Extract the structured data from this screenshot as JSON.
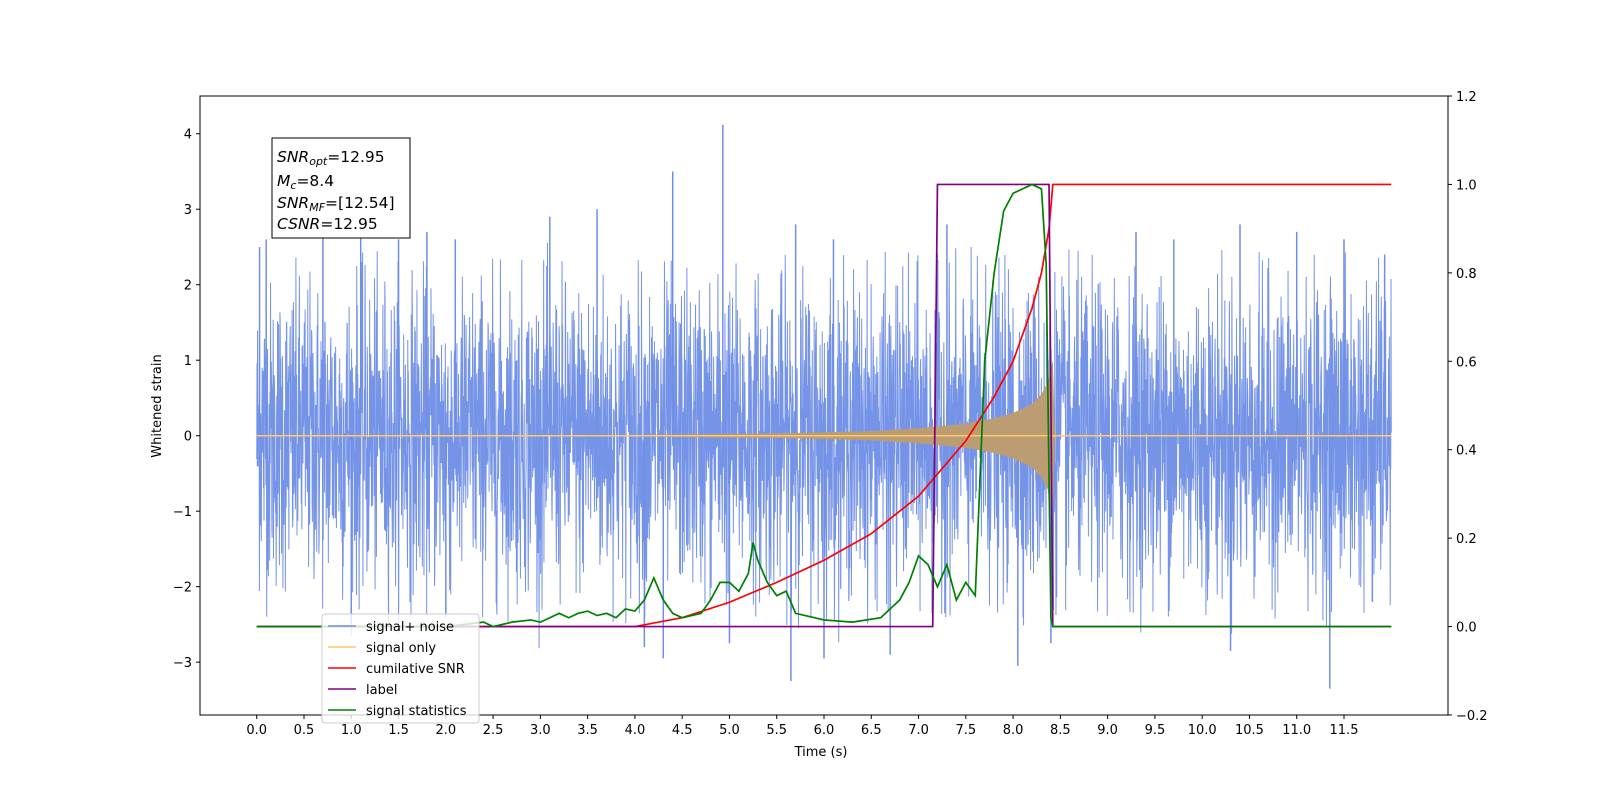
{
  "chart_data": {
    "type": "line",
    "xlabel": "Time (s)",
    "ylabel": "Whitened strain",
    "xlim": [
      -0.6,
      12.6
    ],
    "ylim": [
      -3.7,
      4.5
    ],
    "ylim_right": [
      -0.2,
      1.2
    ],
    "x_ticks": [
      0.0,
      0.5,
      1.0,
      1.5,
      2.0,
      2.5,
      3.0,
      3.5,
      4.0,
      4.5,
      5.0,
      5.5,
      6.0,
      6.5,
      7.0,
      7.5,
      8.0,
      8.5,
      9.0,
      9.5,
      10.0,
      10.5,
      11.0,
      11.5
    ],
    "x_tick_labels": [
      "0.0",
      "0.5",
      "1.0",
      "1.5",
      "2.0",
      "2.5",
      "3.0",
      "3.5",
      "4.0",
      "4.5",
      "5.0",
      "5.5",
      "6.0",
      "6.5",
      "7.0",
      "7.5",
      "8.0",
      "8.5",
      "9.0",
      "9.5",
      "10.0",
      "10.5",
      "11.0",
      "11.5"
    ],
    "y_ticks": [
      -3,
      -2,
      -1,
      0,
      1,
      2,
      3,
      4
    ],
    "y_tick_labels": [
      "−3",
      "−2",
      "−1",
      "0",
      "1",
      "2",
      "3",
      "4"
    ],
    "y2_ticks": [
      -0.2,
      0.0,
      0.2,
      0.4,
      0.6,
      0.8,
      1.0,
      1.2
    ],
    "y2_tick_labels": [
      "−0.2",
      "0.0",
      "0.2",
      "0.4",
      "0.6",
      "0.8",
      "1.0",
      "1.2"
    ],
    "grid": false,
    "legend_position": "bottom-left",
    "annotation": {
      "snr_opt": {
        "sym": "SNR",
        "sub": "opt",
        "text": "=12.95"
      },
      "mc": {
        "sym": "M",
        "sub": "c",
        "text": "=8.4"
      },
      "snr_mf": {
        "sym": "SNR",
        "sub": "MF",
        "text": "=[12.54]"
      },
      "csnr": {
        "sym": "CSNR",
        "text": "=12.95"
      }
    },
    "series": [
      {
        "name": "signal+ noise",
        "color": "#6f8ee6",
        "axis": "left",
        "kind": "noise",
        "x_range": [
          0.0,
          12.0
        ],
        "noise_sigma": 1.0,
        "spikes": [
          [
            0.03,
            2.5
          ],
          [
            0.1,
            2.6
          ],
          [
            0.7,
            2.7
          ],
          [
            1.1,
            2.8
          ],
          [
            1.5,
            2.6
          ],
          [
            1.8,
            2.7
          ],
          [
            2.1,
            2.6
          ],
          [
            3.1,
            2.9
          ],
          [
            3.6,
            3.0
          ],
          [
            4.4,
            3.5
          ],
          [
            4.93,
            4.12
          ],
          [
            5.7,
            2.8
          ],
          [
            6.1,
            2.6
          ],
          [
            7.3,
            2.8
          ],
          [
            9.3,
            2.7
          ],
          [
            9.7,
            2.6
          ],
          [
            10.4,
            2.8
          ],
          [
            11.0,
            2.7
          ],
          [
            11.5,
            2.6
          ],
          [
            11.93,
            2.4
          ],
          [
            1.0,
            -2.5
          ],
          [
            2.0,
            -2.4
          ],
          [
            4.1,
            -2.8
          ],
          [
            4.3,
            -2.95
          ],
          [
            5.0,
            -2.75
          ],
          [
            5.65,
            -3.25
          ],
          [
            6.0,
            -2.95
          ],
          [
            6.7,
            -2.9
          ],
          [
            8.05,
            -3.05
          ],
          [
            8.4,
            -2.75
          ],
          [
            10.3,
            -2.85
          ],
          [
            11.35,
            -3.35
          ],
          [
            11.8,
            -2.2
          ]
        ]
      },
      {
        "name": "signal only",
        "color": "#ffc966",
        "axis": "left",
        "kind": "chirp",
        "fill_color": "#bb9c73",
        "envelope_points": [
          [
            0.0,
            0.0
          ],
          [
            4.0,
            0.01
          ],
          [
            5.5,
            0.03
          ],
          [
            6.5,
            0.06
          ],
          [
            7.0,
            0.1
          ],
          [
            7.5,
            0.16
          ],
          [
            7.8,
            0.23
          ],
          [
            8.0,
            0.3
          ],
          [
            8.2,
            0.42
          ],
          [
            8.3,
            0.55
          ],
          [
            8.37,
            0.72
          ],
          [
            8.42,
            1.0
          ],
          [
            8.44,
            0.1
          ],
          [
            8.45,
            0.0
          ],
          [
            12.0,
            0.0
          ]
        ]
      },
      {
        "name": "cumilative SNR",
        "color": "#ff0000",
        "axis": "right",
        "x": [
          0.0,
          4.0,
          4.5,
          5.0,
          5.5,
          6.0,
          6.5,
          7.0,
          7.5,
          7.8,
          8.0,
          8.2,
          8.3,
          8.38,
          8.42,
          8.44,
          12.0
        ],
        "y": [
          0.0,
          0.0,
          0.02,
          0.055,
          0.1,
          0.15,
          0.21,
          0.295,
          0.42,
          0.52,
          0.6,
          0.72,
          0.8,
          0.9,
          1.0,
          1.0,
          1.0
        ]
      },
      {
        "name": "label",
        "color": "#800080",
        "axis": "right",
        "x": [
          0.0,
          7.15,
          7.2,
          8.38,
          8.42,
          12.0
        ],
        "y": [
          0.0,
          0.0,
          1.0,
          1.0,
          0.0,
          0.0
        ]
      },
      {
        "name": "signal statistics",
        "color": "#008000",
        "axis": "right",
        "x": [
          0.0,
          2.0,
          2.2,
          2.4,
          2.5,
          2.7,
          2.9,
          3.0,
          3.1,
          3.2,
          3.3,
          3.4,
          3.5,
          3.6,
          3.7,
          3.8,
          3.9,
          4.0,
          4.1,
          4.2,
          4.3,
          4.4,
          4.5,
          4.7,
          4.8,
          4.9,
          5.0,
          5.1,
          5.2,
          5.25,
          5.3,
          5.4,
          5.5,
          5.6,
          5.7,
          5.8,
          6.0,
          6.3,
          6.6,
          6.8,
          6.9,
          7.0,
          7.1,
          7.2,
          7.3,
          7.4,
          7.5,
          7.6,
          7.7,
          7.8,
          7.9,
          8.0,
          8.1,
          8.2,
          8.3,
          8.35,
          8.4,
          8.42,
          8.5,
          12.0
        ],
        "y": [
          0.0,
          0.0,
          0.005,
          0.01,
          0.0,
          0.01,
          0.015,
          0.01,
          0.02,
          0.03,
          0.02,
          0.03,
          0.035,
          0.025,
          0.03,
          0.02,
          0.04,
          0.035,
          0.06,
          0.11,
          0.06,
          0.03,
          0.02,
          0.03,
          0.06,
          0.1,
          0.1,
          0.08,
          0.12,
          0.19,
          0.15,
          0.1,
          0.07,
          0.08,
          0.03,
          0.025,
          0.015,
          0.01,
          0.02,
          0.06,
          0.1,
          0.16,
          0.14,
          0.09,
          0.14,
          0.06,
          0.1,
          0.07,
          0.6,
          0.8,
          0.94,
          0.98,
          0.99,
          1.0,
          0.99,
          0.82,
          0.02,
          0.0,
          0.0,
          0.0
        ]
      }
    ]
  }
}
